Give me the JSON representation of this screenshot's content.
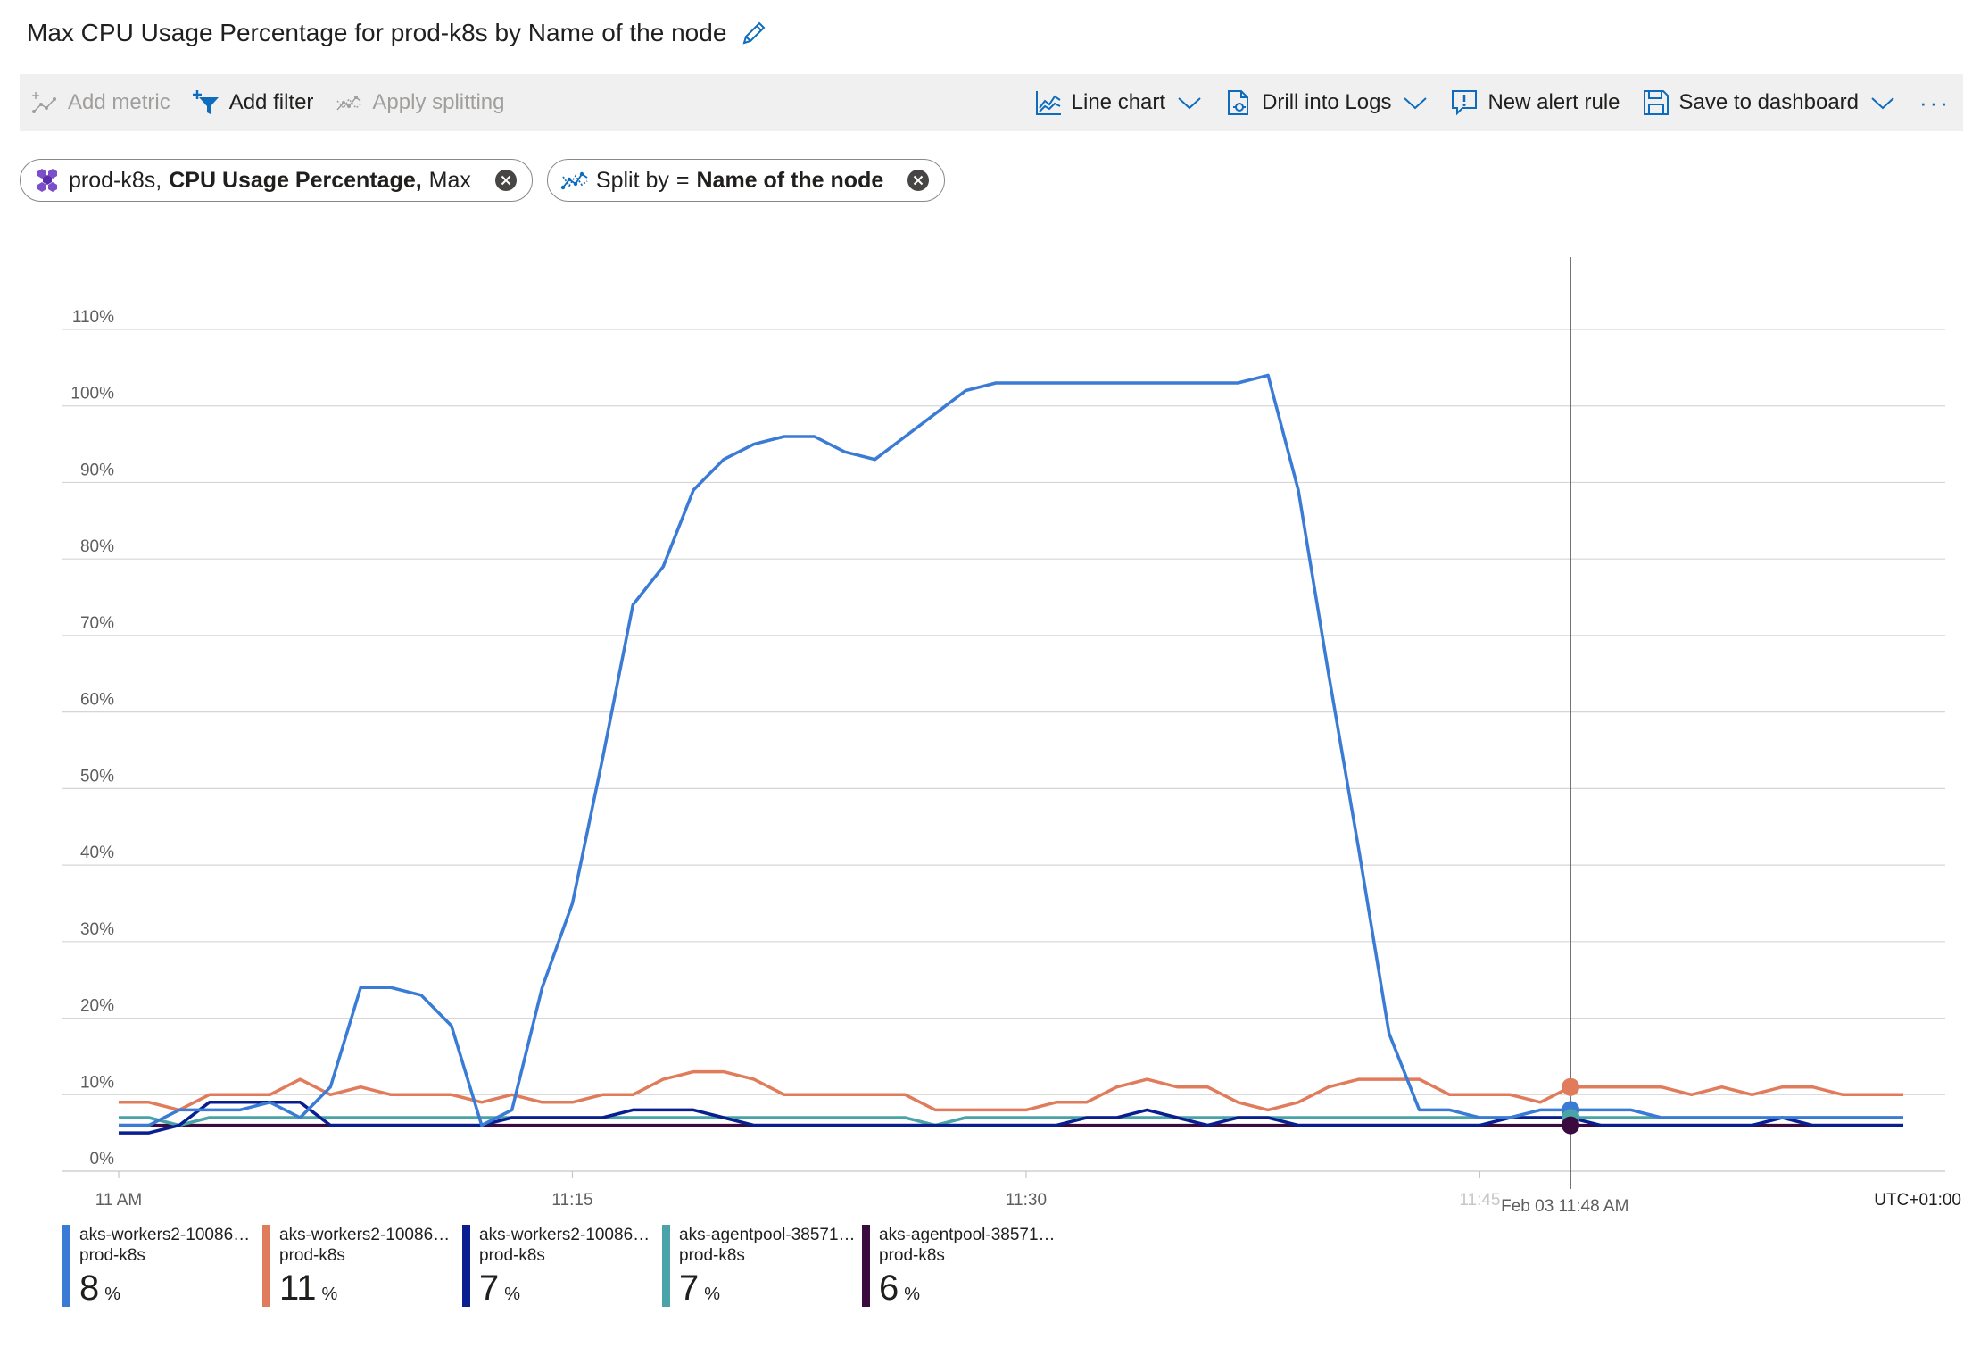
{
  "header": {
    "title": "Max CPU Usage Percentage for prod-k8s by Name of the node"
  },
  "toolbar": {
    "add_metric": "Add metric",
    "add_filter": "Add filter",
    "apply_splitting": "Apply splitting",
    "line_chart": "Line chart",
    "drill_logs": "Drill into Logs",
    "new_alert": "New alert rule",
    "save_dashboard": "Save to dashboard",
    "more": "···"
  },
  "pills": {
    "metric": {
      "resource": "prod-k8s,",
      "metric": "CPU Usage Percentage,",
      "aggregation": "Max"
    },
    "split": {
      "label": "Split by",
      "eq": "=",
      "value": "Name of the node"
    }
  },
  "colors": {
    "accent": "#0f6cbd",
    "series1": "#3a7bd5",
    "series2": "#e07b5c",
    "series3": "#0a1f8f",
    "series4": "#4aa3a8",
    "series5": "#3b0a3f"
  },
  "chart_data": {
    "type": "line",
    "y_ticks": [
      "0%",
      "10%",
      "20%",
      "30%",
      "40%",
      "50%",
      "60%",
      "70%",
      "80%",
      "90%",
      "100%",
      "110%"
    ],
    "ylim": [
      0,
      110
    ],
    "x_ticks": [
      "11 AM",
      "11:15",
      "11:30",
      "11:45"
    ],
    "x_minutes_from": "11:00",
    "x_range": [
      0,
      59
    ],
    "cursor_label": "Feb 03 11:48 AM",
    "cursor_minute": 48,
    "timezone": "UTC+01:00",
    "series": [
      {
        "name": "aks-workers2-1008687...",
        "resource": "prod-k8s",
        "current": "8",
        "unit": "%",
        "color": "#3a7bd5",
        "x": [
          0,
          1,
          2,
          3,
          4,
          5,
          6,
          7,
          8,
          9,
          10,
          11,
          12,
          13,
          14,
          15,
          16,
          17,
          18,
          19,
          20,
          21,
          22,
          23,
          24,
          25,
          26,
          27,
          28,
          29,
          30,
          31,
          32,
          33,
          34,
          35,
          36,
          37,
          38,
          39,
          40,
          41,
          42,
          43,
          44,
          45,
          46,
          47,
          48,
          49,
          50,
          51,
          52,
          53,
          54,
          55,
          56,
          57,
          58,
          59
        ],
        "values": [
          6,
          6,
          8,
          8,
          8,
          9,
          7,
          11,
          24,
          24,
          23,
          19,
          6,
          8,
          24,
          35,
          54,
          74,
          79,
          89,
          93,
          95,
          96,
          96,
          94,
          93,
          96,
          99,
          102,
          103,
          103,
          103,
          103,
          103,
          103,
          103,
          103,
          103,
          104,
          89,
          65,
          42,
          18,
          8,
          8,
          7,
          7,
          8,
          8,
          8,
          8,
          7,
          7,
          7,
          7,
          7,
          7,
          7,
          7,
          7
        ]
      },
      {
        "name": "aks-workers2-1008687...",
        "resource": "prod-k8s",
        "current": "11",
        "unit": "%",
        "color": "#e07b5c",
        "x": [
          0,
          1,
          2,
          3,
          4,
          5,
          6,
          7,
          8,
          9,
          10,
          11,
          12,
          13,
          14,
          15,
          16,
          17,
          18,
          19,
          20,
          21,
          22,
          23,
          24,
          25,
          26,
          27,
          28,
          29,
          30,
          31,
          32,
          33,
          34,
          35,
          36,
          37,
          38,
          39,
          40,
          41,
          42,
          43,
          44,
          45,
          46,
          47,
          48,
          49,
          50,
          51,
          52,
          53,
          54,
          55,
          56,
          57,
          58,
          59
        ],
        "values": [
          9,
          9,
          8,
          10,
          10,
          10,
          12,
          10,
          11,
          10,
          10,
          10,
          9,
          10,
          9,
          9,
          10,
          10,
          12,
          13,
          13,
          12,
          10,
          10,
          10,
          10,
          10,
          8,
          8,
          8,
          8,
          9,
          9,
          11,
          12,
          11,
          11,
          9,
          8,
          9,
          11,
          12,
          12,
          12,
          10,
          10,
          10,
          9,
          11,
          11,
          11,
          11,
          10,
          11,
          10,
          11,
          11,
          10,
          10,
          10
        ]
      },
      {
        "name": "aks-workers2-1008687...",
        "resource": "prod-k8s",
        "current": "7",
        "unit": "%",
        "color": "#0a1f8f",
        "x": [
          0,
          1,
          2,
          3,
          4,
          5,
          6,
          7,
          8,
          9,
          10,
          11,
          12,
          13,
          14,
          15,
          16,
          17,
          18,
          19,
          20,
          21,
          22,
          23,
          24,
          25,
          26,
          27,
          28,
          29,
          30,
          31,
          32,
          33,
          34,
          35,
          36,
          37,
          38,
          39,
          40,
          41,
          42,
          43,
          44,
          45,
          46,
          47,
          48,
          49,
          50,
          51,
          52,
          53,
          54,
          55,
          56,
          57,
          58,
          59
        ],
        "values": [
          5,
          5,
          6,
          9,
          9,
          9,
          9,
          6,
          6,
          6,
          6,
          6,
          6,
          7,
          7,
          7,
          7,
          8,
          8,
          8,
          7,
          6,
          6,
          6,
          6,
          6,
          6,
          6,
          6,
          6,
          6,
          6,
          7,
          7,
          8,
          7,
          6,
          7,
          7,
          6,
          6,
          6,
          6,
          6,
          6,
          6,
          7,
          7,
          7,
          6,
          6,
          6,
          6,
          6,
          6,
          7,
          6,
          6,
          6,
          6
        ]
      },
      {
        "name": "aks-agentpool-385710...",
        "resource": "prod-k8s",
        "current": "7",
        "unit": "%",
        "color": "#4aa3a8",
        "x": [
          0,
          1,
          2,
          3,
          4,
          5,
          6,
          7,
          8,
          9,
          10,
          11,
          12,
          13,
          14,
          15,
          16,
          17,
          18,
          19,
          20,
          21,
          22,
          23,
          24,
          25,
          26,
          27,
          28,
          29,
          30,
          31,
          32,
          33,
          34,
          35,
          36,
          37,
          38,
          39,
          40,
          41,
          42,
          43,
          44,
          45,
          46,
          47,
          48,
          49,
          50,
          51,
          52,
          53,
          54,
          55,
          56,
          57,
          58,
          59
        ],
        "values": [
          7,
          7,
          6,
          7,
          7,
          7,
          7,
          7,
          7,
          7,
          7,
          7,
          7,
          7,
          7,
          7,
          7,
          7,
          7,
          7,
          7,
          7,
          7,
          7,
          7,
          7,
          7,
          6,
          7,
          7,
          7,
          7,
          7,
          7,
          7,
          7,
          7,
          7,
          7,
          7,
          7,
          7,
          7,
          7,
          7,
          7,
          7,
          7,
          7,
          7,
          7,
          7,
          7,
          7,
          7,
          7,
          7,
          7,
          7,
          7
        ]
      },
      {
        "name": "aks-agentpool-385710...",
        "resource": "prod-k8s",
        "current": "6",
        "unit": "%",
        "color": "#3b0a3f",
        "x": [
          0,
          1,
          2,
          3,
          4,
          5,
          6,
          7,
          8,
          9,
          10,
          11,
          12,
          13,
          14,
          15,
          16,
          17,
          18,
          19,
          20,
          21,
          22,
          23,
          24,
          25,
          26,
          27,
          28,
          29,
          30,
          31,
          32,
          33,
          34,
          35,
          36,
          37,
          38,
          39,
          40,
          41,
          42,
          43,
          44,
          45,
          46,
          47,
          48,
          49,
          50,
          51,
          52,
          53,
          54,
          55,
          56,
          57,
          58,
          59
        ],
        "values": [
          6,
          6,
          6,
          6,
          6,
          6,
          6,
          6,
          6,
          6,
          6,
          6,
          6,
          6,
          6,
          6,
          6,
          6,
          6,
          6,
          6,
          6,
          6,
          6,
          6,
          6,
          6,
          6,
          6,
          6,
          6,
          6,
          6,
          6,
          6,
          6,
          6,
          6,
          6,
          6,
          6,
          6,
          6,
          6,
          6,
          6,
          6,
          6,
          6,
          6,
          6,
          6,
          6,
          6,
          6,
          6,
          6,
          6,
          6,
          6
        ]
      }
    ],
    "cursor_values": [
      8,
      11,
      7,
      7,
      6
    ],
    "grid": true,
    "legend": "bottom"
  }
}
